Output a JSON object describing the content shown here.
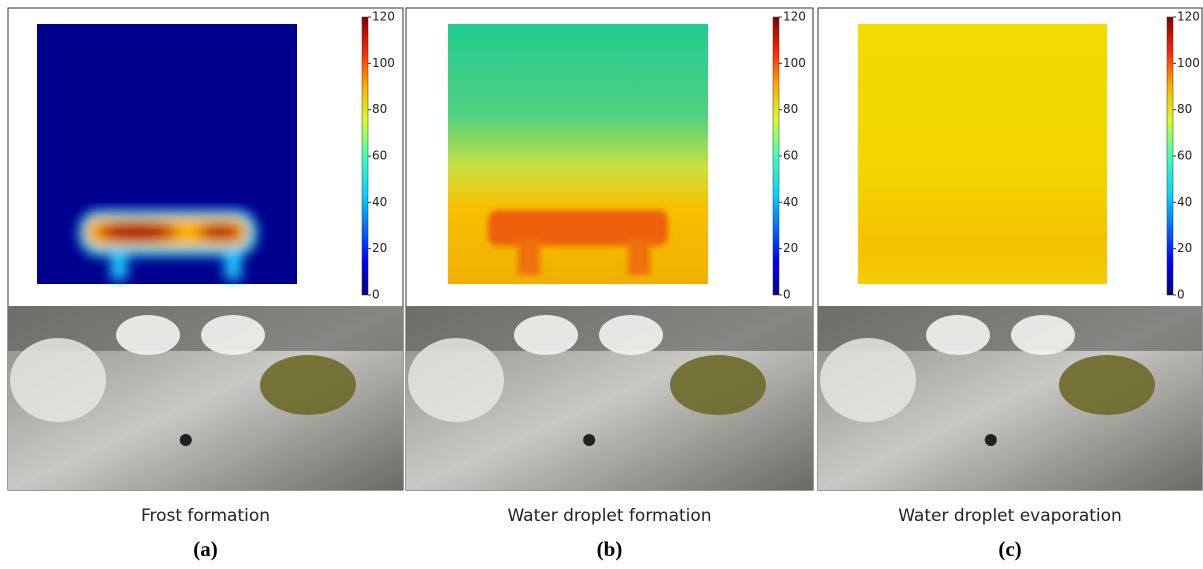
{
  "panels": [
    {
      "caption": "Frost formation",
      "label": "(a)",
      "colorbar": {
        "range": [
          0,
          120
        ],
        "ticks": [
          0,
          20,
          40,
          60,
          80,
          100,
          120
        ]
      }
    },
    {
      "caption": "Water droplet formation",
      "label": "(b)",
      "colorbar": {
        "range": [
          0,
          120
        ],
        "ticks": [
          0,
          20,
          40,
          60,
          80,
          100,
          120
        ]
      }
    },
    {
      "caption": "Water droplet evaporation",
      "label": "(c)",
      "colorbar": {
        "range": [
          0,
          120
        ],
        "ticks": [
          0,
          20,
          40,
          60,
          80,
          100,
          120
        ]
      }
    }
  ]
}
